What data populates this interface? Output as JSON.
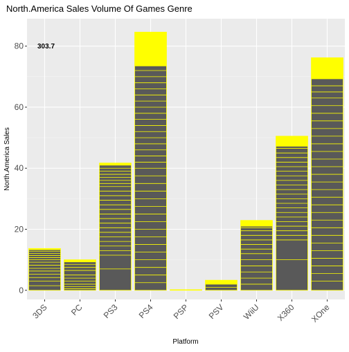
{
  "chart_data": {
    "type": "bar",
    "title": "North.America Sales Volume Of Games Genre",
    "xlabel": "Platform",
    "ylabel": "North.America Sales",
    "annotation": "303.7",
    "categories": [
      "3DS",
      "PC",
      "PS3",
      "PS4",
      "PSP",
      "PSV",
      "WiiU",
      "X360",
      "XOne"
    ],
    "values": [
      13.7,
      10.0,
      41.7,
      84.6,
      0.2,
      3.3,
      22.9,
      50.5,
      76.2
    ],
    "segment_breaks": [
      [
        1.5,
        3.0,
        4.2,
        5.3,
        6.3,
        7.2,
        8.2,
        9.2,
        10.0,
        10.7,
        11.4,
        12.1,
        12.8,
        13.3
      ],
      [
        0.5,
        1.2,
        2.0,
        3.0,
        4.0,
        5.0,
        6.5,
        7.5,
        8.5,
        9.3
      ],
      [
        7.0,
        11.5,
        13.0,
        14.5,
        16.0,
        17.5,
        19.0,
        20.5,
        22.0,
        23.5,
        25.0,
        26.5,
        28.0,
        29.5,
        31.0,
        32.5,
        34.0,
        35.0,
        36.0,
        37.0,
        38.0,
        39.0,
        40.0,
        41.0
      ],
      [
        2.5,
        5.0,
        7.5,
        10.0,
        12.5,
        15.0,
        17.5,
        20.0,
        22.5,
        25.0,
        27.5,
        30.0,
        32.5,
        35.0,
        37.5,
        40.0,
        42.0,
        44.0,
        46.0,
        48.0,
        50.0,
        52.0,
        54.0,
        56.0,
        58.0,
        60.0,
        62.0,
        64.0,
        66.0,
        68.0,
        70.0,
        72.0,
        73.5
      ],
      [],
      [
        1.0,
        2.0
      ],
      [
        2.0,
        4.0,
        6.0,
        8.0,
        10.0,
        12.0,
        13.5,
        15.0,
        16.5,
        18.0,
        19.5,
        20.5,
        21.0
      ],
      [
        10.0,
        16.5,
        18.0,
        19.5,
        21.0,
        22.5,
        24.0,
        25.5,
        27.0,
        28.5,
        30.0,
        31.5,
        33.0,
        34.5,
        36.0,
        37.5,
        39.0,
        40.5,
        42.0,
        43.5,
        45.0,
        46.5,
        47.2
      ],
      [
        3.0,
        5.5,
        8.0,
        10.5,
        13.0,
        15.5,
        18.0,
        20.5,
        23.0,
        25.5,
        28.0,
        30.5,
        33.0,
        35.5,
        38.0,
        40.5,
        43.0,
        45.5,
        48.0,
        50.5,
        53.0,
        55.5,
        58.0,
        60.5,
        63.0,
        65.0,
        67.0,
        69.3
      ]
    ],
    "y_ticks": [
      0,
      20,
      40,
      60,
      80
    ],
    "ylim": [
      -3,
      89
    ],
    "grid": true,
    "colors": {
      "bar_fill": "#595959",
      "segment_line": "#ffff00",
      "bar_top": "#ffff00",
      "panel_bg": "#ebebeb",
      "grid_major": "#ffffff",
      "grid_minor": "#f5f5f5"
    }
  }
}
